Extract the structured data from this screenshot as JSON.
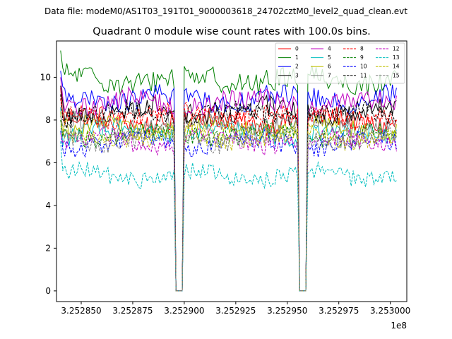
{
  "figure": {
    "suptitle": "Data file: modeM0/AS1T03_191T01_9000003618_24702cztM0_level2_quad_clean.evt"
  },
  "chart_data": {
    "type": "line",
    "title": "Quadrant 0 module wise count rates with 100.0s bins.",
    "xlabel": "",
    "ylabel": "",
    "x_offset_label": "1e8",
    "x_scale": 100000000,
    "xlim": [
      325283800,
      325300800
    ],
    "ylim": [
      -0.5,
      11.7
    ],
    "xticks": [
      325285000,
      325287500,
      325290000,
      325292500,
      325295000,
      325297500,
      325300000
    ],
    "xtick_labels": [
      "3.252850",
      "3.252875",
      "3.252900",
      "3.252925",
      "3.252950",
      "3.252975",
      "3.253000"
    ],
    "yticks": [
      0,
      2,
      4,
      6,
      8,
      10
    ],
    "ytick_labels": [
      "0",
      "2",
      "4",
      "6",
      "8",
      "10"
    ],
    "grid": false,
    "legend_position": "top-right",
    "legend_columns": 4,
    "bin_seconds": 100,
    "x_start": 325284000,
    "n_bins": 164,
    "gaps": [
      [
        325289600,
        325289900
      ],
      [
        325295600,
        325295900
      ]
    ],
    "series": [
      {
        "name": "0",
        "color": "#ff0000",
        "dash": "solid",
        "level": 8.0,
        "amp": 0.5,
        "start": 9.5
      },
      {
        "name": "1",
        "color": "#008000",
        "dash": "solid",
        "level": 9.9,
        "amp": 0.55,
        "start": 11.25
      },
      {
        "name": "2",
        "color": "#0000ff",
        "dash": "solid",
        "level": 9.0,
        "amp": 0.5,
        "start": 10.3
      },
      {
        "name": "3",
        "color": "#000000",
        "dash": "solid",
        "level": 8.4,
        "amp": 0.5,
        "start": 9.6
      },
      {
        "name": "4",
        "color": "#bf00bf",
        "dash": "solid",
        "level": 8.8,
        "amp": 0.5,
        "start": 10.0
      },
      {
        "name": "5",
        "color": "#00bfbf",
        "dash": "solid",
        "level": 7.4,
        "amp": 0.45,
        "start": 8.6
      },
      {
        "name": "6",
        "color": "#bfbf00",
        "dash": "solid",
        "level": 7.6,
        "amp": 0.45,
        "start": 8.4
      },
      {
        "name": "7",
        "color": "#808080",
        "dash": "solid",
        "level": 7.8,
        "amp": 0.45,
        "start": 8.2
      },
      {
        "name": "8",
        "color": "#ff0000",
        "dash": "dashed",
        "level": 8.2,
        "amp": 0.45,
        "start": 9.0
      },
      {
        "name": "9",
        "color": "#008000",
        "dash": "dashed",
        "level": 7.3,
        "amp": 0.45,
        "start": 8.0
      },
      {
        "name": "10",
        "color": "#0000ff",
        "dash": "dashed",
        "level": 6.9,
        "amp": 0.45,
        "start": 7.5
      },
      {
        "name": "11",
        "color": "#000000",
        "dash": "dashed",
        "level": 8.3,
        "amp": 0.45,
        "start": 9.2
      },
      {
        "name": "12",
        "color": "#bf00bf",
        "dash": "dashed",
        "level": 7.0,
        "amp": 0.45,
        "start": 7.4
      },
      {
        "name": "13",
        "color": "#00bfbf",
        "dash": "dashed",
        "level": 5.4,
        "amp": 0.4,
        "start": 7.0
      },
      {
        "name": "14",
        "color": "#bfbf00",
        "dash": "dashed",
        "level": 7.2,
        "amp": 0.45,
        "start": 7.7
      },
      {
        "name": "15",
        "color": "#808080",
        "dash": "dashed",
        "level": 7.1,
        "amp": 0.45,
        "start": 7.6
      }
    ]
  }
}
